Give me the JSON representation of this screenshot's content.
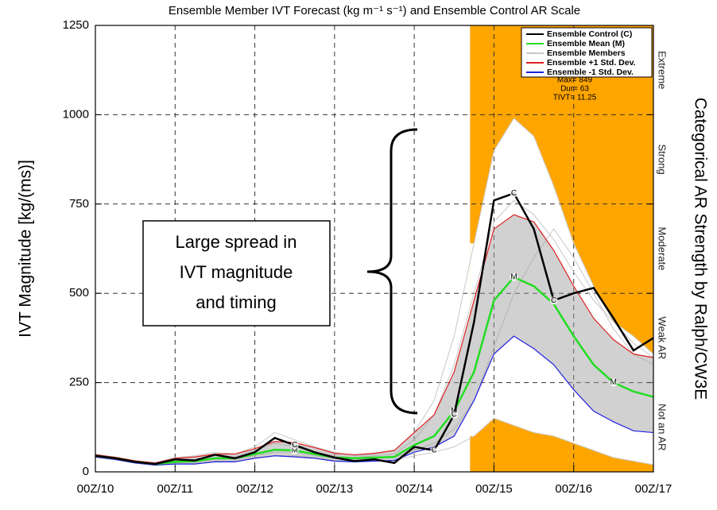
{
  "chart_data": {
    "type": "line",
    "title": "Ensemble Member IVT Forecast (kg m⁻¹ s⁻¹) and Ensemble Control AR Scale",
    "y_label": "IVT Magnitude [kg/(ms)]",
    "y2_label": "Categorical AR Strength by Ralph/CW3E",
    "x": [
      10,
      10.25,
      10.5,
      10.75,
      11,
      11.25,
      11.5,
      11.75,
      12,
      12.25,
      12.5,
      12.75,
      13,
      13.25,
      13.5,
      13.75,
      14,
      14.25,
      14.5,
      14.75,
      15,
      15.25,
      15.5,
      15.75,
      16,
      16.25,
      16.5,
      16.75,
      17
    ],
    "xlim": [
      10,
      17
    ],
    "xticks": [
      {
        "value": 10,
        "label": "00Z/10"
      },
      {
        "value": 11,
        "label": "00Z/11"
      },
      {
        "value": 12,
        "label": "00Z/12"
      },
      {
        "value": 13,
        "label": "00Z/13"
      },
      {
        "value": 14,
        "label": "00Z/14"
      },
      {
        "value": 15,
        "label": "00Z/15"
      },
      {
        "value": 16,
        "label": "00Z/16"
      },
      {
        "value": 17,
        "label": "00Z/17"
      }
    ],
    "ylim": [
      0,
      1250
    ],
    "yticks": [
      0,
      250,
      500,
      750,
      1000,
      1250
    ],
    "y2lim": [
      0,
      1250
    ],
    "y2ticks": [
      {
        "value": 125,
        "label": "Not an AR"
      },
      {
        "value": 375,
        "label": "Weak AR"
      },
      {
        "value": 625,
        "label": "Moderate"
      },
      {
        "value": 875,
        "label": "Strong"
      },
      {
        "value": 1125,
        "label": "Extreme"
      }
    ],
    "grid": true,
    "ar_window": {
      "xlim": [
        14.7,
        17
      ],
      "color": "#ffa500"
    },
    "series": [
      {
        "name": "Ensemble Control (C)",
        "color": "#000000",
        "marker": "C",
        "values": [
          45,
          38,
          28,
          22,
          35,
          32,
          48,
          38,
          55,
          95,
          75,
          55,
          40,
          30,
          35,
          25,
          70,
          60,
          160,
          420,
          760,
          780,
          680,
          480,
          500,
          515,
          430,
          340,
          375
        ]
      },
      {
        "name": "Ensemble Mean (M)",
        "color": "#22dd22",
        "marker": "M",
        "values": [
          45,
          38,
          28,
          22,
          28,
          30,
          38,
          38,
          50,
          62,
          60,
          50,
          40,
          38,
          40,
          42,
          75,
          100,
          170,
          280,
          480,
          545,
          520,
          470,
          380,
          300,
          250,
          225,
          210
        ]
      },
      {
        "name": "Ensemble Members",
        "color": "#c8c8c8",
        "values": [
          [
            50,
            40,
            30,
            25,
            40,
            45,
            55,
            50,
            70,
            110,
            90,
            70,
            55,
            45,
            50,
            60,
            110,
            200,
            380,
            640,
            900,
            990,
            940,
            800,
            640,
            520,
            420,
            380,
            330
          ],
          [
            42,
            35,
            25,
            20,
            25,
            28,
            35,
            35,
            45,
            55,
            55,
            45,
            38,
            35,
            38,
            40,
            60,
            80,
            120,
            200,
            350,
            500,
            600,
            680,
            600,
            500,
            400,
            330,
            300
          ],
          [
            45,
            38,
            28,
            22,
            30,
            32,
            40,
            42,
            60,
            80,
            70,
            55,
            45,
            40,
            45,
            50,
            90,
            160,
            300,
            500,
            700,
            760,
            720,
            650,
            560,
            480,
            420,
            360,
            320
          ],
          [
            40,
            33,
            24,
            18,
            22,
            25,
            30,
            30,
            40,
            45,
            45,
            40,
            32,
            30,
            30,
            32,
            45,
            55,
            70,
            100,
            150,
            130,
            110,
            100,
            80,
            60,
            40,
            30,
            20
          ]
        ]
      },
      {
        "name": "Ensemble +1 Std. Dev.",
        "color": "#e02020",
        "values": [
          48,
          41,
          31,
          25,
          38,
          42,
          50,
          50,
          65,
          85,
          82,
          68,
          52,
          48,
          52,
          60,
          110,
          160,
          280,
          480,
          680,
          720,
          700,
          620,
          520,
          430,
          370,
          330,
          320
        ]
      },
      {
        "name": "Ensemble -1 Std. Dev.",
        "color": "#2020e0",
        "values": [
          42,
          35,
          25,
          19,
          22,
          22,
          28,
          28,
          38,
          45,
          42,
          38,
          30,
          28,
          30,
          32,
          55,
          70,
          100,
          200,
          330,
          380,
          345,
          300,
          230,
          170,
          140,
          115,
          110
        ]
      }
    ],
    "stats": [
      "Max= 849",
      "Dur= 63",
      "TIVT= 11.25"
    ],
    "callout": [
      "Large spread in",
      "IVT magnitude",
      "and timing"
    ]
  }
}
